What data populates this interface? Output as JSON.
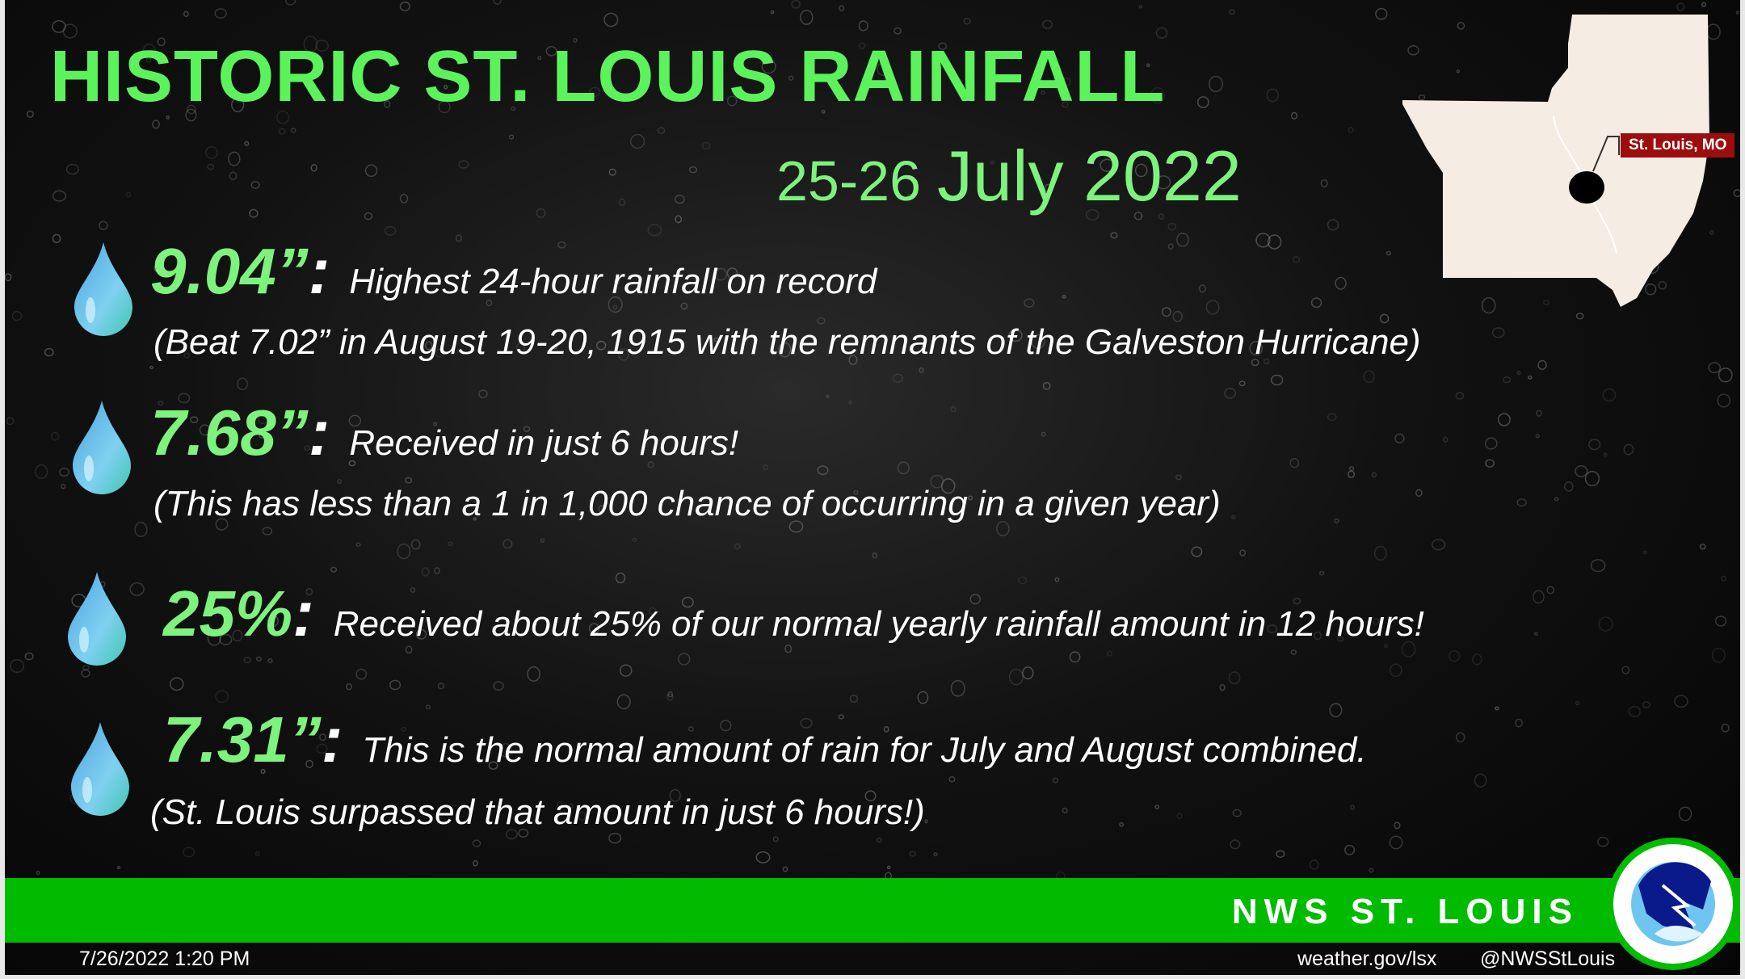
{
  "title": "HISTORIC ST. LOUIS RAINFALL",
  "date_range": {
    "days": "25-26",
    "month_year": "July 2022"
  },
  "map": {
    "label": "St. Louis, MO",
    "label_color": "#9c0d0d",
    "fill": "#f5ece3"
  },
  "facts": [
    {
      "icon": "water-drop-icon",
      "value": "9.04”",
      "colon": ":",
      "description": "Highest 24-hour rainfall on record",
      "note": "(Beat 7.02” in August 19-20, 1915 with the remnants of the Galveston Hurricane)"
    },
    {
      "icon": "water-drop-icon",
      "value": "7.68”",
      "colon": ":",
      "description": "Received in just 6 hours!",
      "note": "(This has less than a 1 in 1,000 chance of occurring in a given year)"
    },
    {
      "icon": "water-drop-icon",
      "value": "25%",
      "colon": ":",
      "description": "Received about 25% of our normal yearly rainfall amount in 12 hours!"
    },
    {
      "icon": "water-drop-icon",
      "value": "7.31”",
      "colon": ":",
      "description": "This is the normal amount of rain for July and August combined.",
      "note": "(St. Louis surpassed that amount in just 6 hours!)"
    }
  ],
  "footer": {
    "org": "NWS ST. LOUIS",
    "timestamp": "7/26/2022 1:20 PM",
    "website": "weather.gov/lsx",
    "twitter": "@NWSStLouis",
    "logo": "national-weather-service-logo",
    "bar_color": "#00bb00"
  },
  "colors": {
    "title": "#5cf25c",
    "value": "#7df27d",
    "background": "#0a0a0a"
  }
}
